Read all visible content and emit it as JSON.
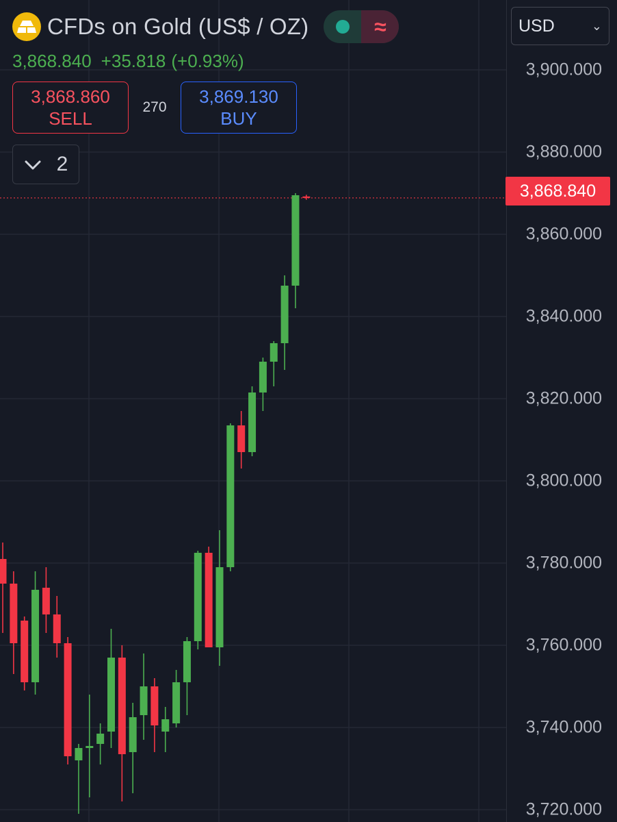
{
  "header": {
    "title": "CFDs on Gold (US$ / OZ)",
    "last_price": "3,868.840",
    "change": "+35.818",
    "change_pct": "(+0.93%)",
    "logo_icon": "gold-bars-icon",
    "market_status_icon": "market-open-dot-icon",
    "data_type_icon": "delayed-data-wave-icon"
  },
  "trade": {
    "sell_price": "3,868.860",
    "sell_label": "SELL",
    "spread": "270",
    "buy_price": "3,869.130",
    "buy_label": "BUY"
  },
  "indicators": {
    "toggle_icon": "chevron-down-icon",
    "count": "2"
  },
  "currency": {
    "selected": "USD"
  },
  "price_axis": {
    "ticks": [
      "3,900.000",
      "3,880.000",
      "3,860.000",
      "3,840.000",
      "3,820.000",
      "3,800.000",
      "3,780.000",
      "3,760.000",
      "3,740.000",
      "3,720.000"
    ],
    "last_price_label": "3,868.840"
  },
  "colors": {
    "up": "#4caf50",
    "down": "#f23645",
    "background": "#161a25",
    "grid": "#242835",
    "sell": "#f23645",
    "buy": "#2962ff",
    "logo": "#f0b90b"
  },
  "chart_data": {
    "type": "candlestick",
    "ylim": [
      3717,
      3917
    ],
    "y_ticks": [
      3720,
      3740,
      3760,
      3780,
      3800,
      3820,
      3840,
      3860,
      3880,
      3900
    ],
    "last_price": 3868.84,
    "candles": [
      {
        "o": 3781.0,
        "h": 3785.0,
        "l": 3763.0,
        "c": 3775.0
      },
      {
        "o": 3775.0,
        "h": 3778.0,
        "l": 3753.0,
        "c": 3760.5
      },
      {
        "o": 3766.0,
        "h": 3767.0,
        "l": 3749.0,
        "c": 3751.0
      },
      {
        "o": 3751.0,
        "h": 3778.0,
        "l": 3748.0,
        "c": 3773.5
      },
      {
        "o": 3774.0,
        "h": 3779.0,
        "l": 3763.0,
        "c": 3767.5
      },
      {
        "o": 3767.5,
        "h": 3772.0,
        "l": 3757.0,
        "c": 3760.5
      },
      {
        "o": 3760.5,
        "h": 3762.0,
        "l": 3731.0,
        "c": 3733.0
      },
      {
        "o": 3732.0,
        "h": 3736.0,
        "l": 3719.0,
        "c": 3735.0
      },
      {
        "o": 3735.0,
        "h": 3748.0,
        "l": 3723.0,
        "c": 3735.5
      },
      {
        "o": 3736.0,
        "h": 3741.0,
        "l": 3731.0,
        "c": 3738.5
      },
      {
        "o": 3739.0,
        "h": 3764.0,
        "l": 3735.0,
        "c": 3757.0
      },
      {
        "o": 3757.0,
        "h": 3760.0,
        "l": 3722.0,
        "c": 3733.5
      },
      {
        "o": 3734.0,
        "h": 3746.0,
        "l": 3724.0,
        "c": 3742.5
      },
      {
        "o": 3743.0,
        "h": 3758.0,
        "l": 3737.0,
        "c": 3750.0
      },
      {
        "o": 3750.0,
        "h": 3752.0,
        "l": 3734.0,
        "c": 3740.5
      },
      {
        "o": 3739.0,
        "h": 3745.0,
        "l": 3734.0,
        "c": 3742.0
      },
      {
        "o": 3741.0,
        "h": 3754.0,
        "l": 3740.0,
        "c": 3751.0
      },
      {
        "o": 3751.0,
        "h": 3762.0,
        "l": 3743.0,
        "c": 3761.0
      },
      {
        "o": 3761.0,
        "h": 3783.0,
        "l": 3759.0,
        "c": 3782.5
      },
      {
        "o": 3782.5,
        "h": 3784.0,
        "l": 3761.0,
        "c": 3759.5
      },
      {
        "o": 3759.5,
        "h": 3788.0,
        "l": 3755.0,
        "c": 3779.0
      },
      {
        "o": 3779.0,
        "h": 3814.0,
        "l": 3778.0,
        "c": 3813.5
      },
      {
        "o": 3813.5,
        "h": 3817.0,
        "l": 3803.0,
        "c": 3807.0
      },
      {
        "o": 3807.0,
        "h": 3823.0,
        "l": 3806.0,
        "c": 3821.5
      },
      {
        "o": 3821.5,
        "h": 3830.0,
        "l": 3817.0,
        "c": 3829.0
      },
      {
        "o": 3829.0,
        "h": 3834.0,
        "l": 3823.0,
        "c": 3833.5
      },
      {
        "o": 3833.5,
        "h": 3850.0,
        "l": 3827.0,
        "c": 3847.5
      },
      {
        "o": 3847.5,
        "h": 3870.0,
        "l": 3842.0,
        "c": 3869.5
      },
      {
        "o": 3869.2,
        "h": 3869.6,
        "l": 3868.4,
        "c": 3868.84
      }
    ]
  }
}
